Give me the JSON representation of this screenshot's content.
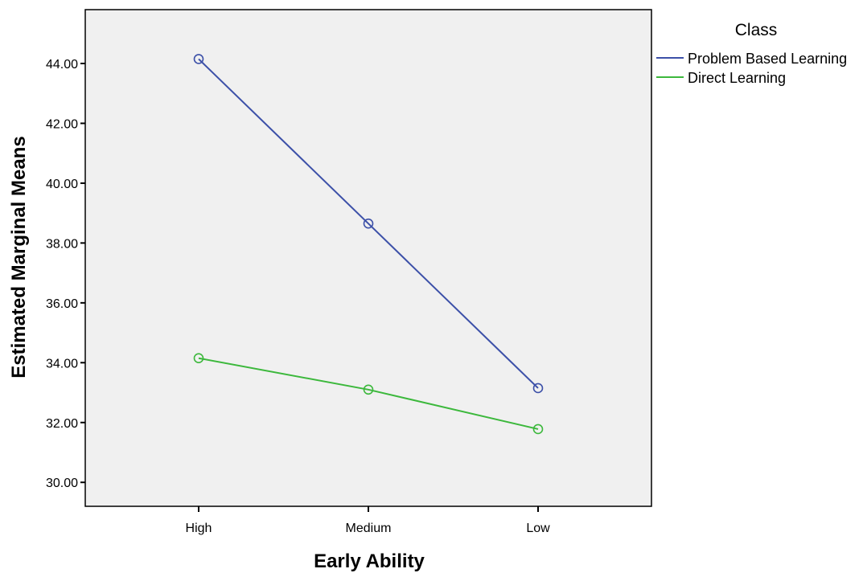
{
  "chart_data": {
    "type": "line",
    "title": "",
    "xlabel": "Early Ability",
    "ylabel": "Estimated Marginal Means",
    "categories": [
      "High",
      "Medium",
      "Low"
    ],
    "ylim": [
      29.2,
      45.8
    ],
    "yticks": [
      30,
      32,
      34,
      36,
      38,
      40,
      42,
      44
    ],
    "ytick_labels": [
      "30.00",
      "32.00",
      "34.00",
      "36.00",
      "38.00",
      "40.00",
      "42.00",
      "44.00"
    ],
    "grid": false,
    "legend": {
      "title": "Class",
      "placement": "top-right, outside plot"
    },
    "series": [
      {
        "name": "Problem Based Learning",
        "color": "#3c50a8",
        "values": [
          44.15,
          38.65,
          33.15
        ]
      },
      {
        "name": "Direct Learning",
        "color": "#3cb83c",
        "values": [
          34.15,
          33.1,
          31.78
        ]
      }
    ],
    "marker": "open-circle",
    "plot_background": "#f0f0f0"
  }
}
